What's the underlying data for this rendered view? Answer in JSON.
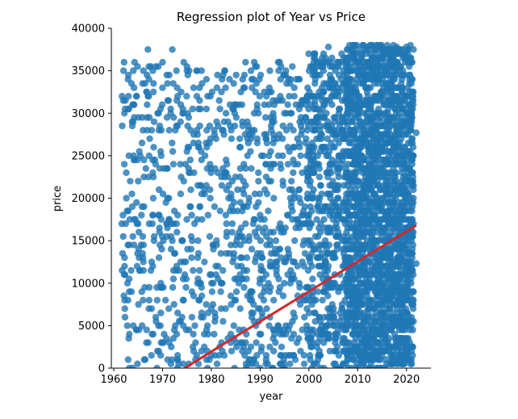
{
  "chart_data": {
    "type": "scatter",
    "title": "Regression plot of Year vs Price",
    "xlabel": "year",
    "ylabel": "price",
    "xlim": [
      1959.5,
      2025
    ],
    "ylim": [
      0,
      40000
    ],
    "x_ticks": [
      1960,
      1970,
      1980,
      1990,
      2000,
      2010,
      2020
    ],
    "y_ticks": [
      0,
      5000,
      10000,
      15000,
      20000,
      25000,
      30000,
      35000,
      40000
    ],
    "grid": false,
    "legend": "none",
    "colors": {
      "points": "#1f77b4",
      "regression_line": "#d62728"
    },
    "regression_line": {
      "x": [
        1974.5,
        2022
      ],
      "y": [
        0,
        16800
      ]
    },
    "notes_visible": "dense scatter of car listings; density rises sharply after ~2000, solid mass 2008-2021 up to ~38000",
    "series": [
      {
        "values_sample": [
          [
            1962,
            35000
          ],
          [
            1963,
            32000
          ],
          [
            1964,
            35000
          ],
          [
            1965,
            22000
          ],
          [
            1966,
            28000
          ],
          [
            1967,
            37500
          ],
          [
            1968,
            35000
          ],
          [
            1969,
            30000
          ],
          [
            1970,
            36000
          ],
          [
            1971,
            20000
          ],
          [
            1972,
            37500
          ],
          [
            1973,
            33000
          ],
          [
            1975,
            35000
          ],
          [
            1977,
            35000
          ],
          [
            1978,
            35000
          ],
          [
            1979,
            34000
          ],
          [
            1983,
            30000
          ],
          [
            1987,
            36000
          ],
          [
            1989,
            35500
          ],
          [
            1992,
            35000
          ],
          [
            1994,
            36000
          ],
          [
            1997,
            33000
          ],
          [
            2004,
            37800
          ],
          [
            2012,
            37800
          ],
          [
            2015,
            37800
          ],
          [
            2018,
            37800
          ],
          [
            2020,
            37800
          ],
          [
            1964,
            5000
          ],
          [
            1966,
            8000
          ],
          [
            1968,
            12000
          ],
          [
            1970,
            3000
          ],
          [
            1972,
            15000
          ],
          [
            1974,
            6000
          ],
          [
            1976,
            9000
          ],
          [
            1978,
            2000
          ],
          [
            1980,
            11000
          ],
          [
            1982,
            7000
          ],
          [
            1984,
            4000
          ],
          [
            1986,
            13000
          ],
          [
            1988,
            9000
          ],
          [
            1990,
            18000
          ],
          [
            1992,
            6000
          ],
          [
            1994,
            14000
          ],
          [
            1996,
            21000
          ],
          [
            1998,
            8000
          ],
          [
            2000,
            25000
          ],
          [
            2002,
            12000
          ],
          [
            2004,
            28000
          ],
          [
            2006,
            16000
          ],
          [
            2008,
            30000
          ],
          [
            2010,
            22000
          ],
          [
            2012,
            33000
          ],
          [
            2014,
            26000
          ],
          [
            2016,
            35000
          ],
          [
            2018,
            28000
          ],
          [
            2020,
            30000
          ],
          [
            2021,
            12000
          ],
          [
            2022,
            27700
          ],
          [
            2022,
            12300
          ],
          [
            2021,
            5500
          ],
          [
            2021,
            1000
          ]
        ]
      }
    ]
  }
}
